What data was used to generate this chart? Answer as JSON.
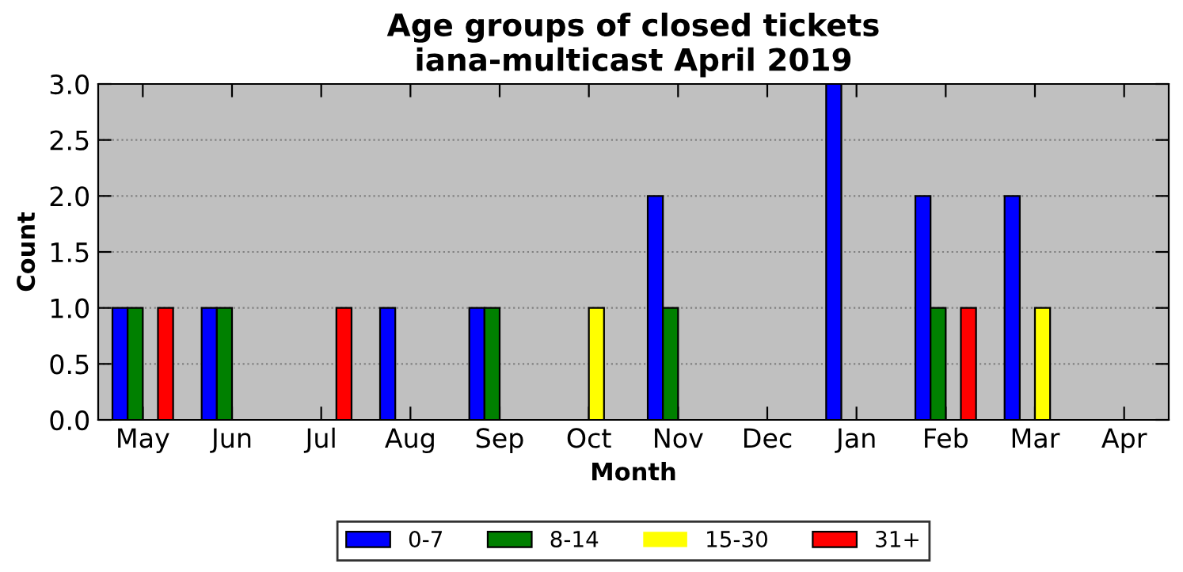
{
  "chart_data": {
    "type": "bar",
    "title": "Age groups of closed tickets\niana-multicast April 2019",
    "xlabel": "Month",
    "ylabel": "Count",
    "categories": [
      "May",
      "Jun",
      "Jul",
      "Aug",
      "Sep",
      "Oct",
      "Nov",
      "Dec",
      "Jan",
      "Feb",
      "Mar",
      "Apr"
    ],
    "series": [
      {
        "name": "0-7",
        "color": "#0000ff",
        "values": [
          1,
          1,
          0,
          1,
          1,
          0,
          2,
          0,
          3,
          2,
          2,
          0
        ]
      },
      {
        "name": "8-14",
        "color": "#008000",
        "values": [
          1,
          1,
          0,
          0,
          1,
          0,
          1,
          0,
          0,
          1,
          0,
          0
        ]
      },
      {
        "name": "15-30",
        "color": "#ffff00",
        "values": [
          0,
          0,
          0,
          0,
          0,
          1,
          0,
          0,
          0,
          0,
          1,
          0
        ]
      },
      {
        "name": "31+",
        "color": "#ff0000",
        "values": [
          1,
          0,
          1,
          0,
          0,
          0,
          0,
          0,
          0,
          1,
          0,
          0
        ]
      }
    ],
    "ylim": [
      0,
      3
    ],
    "yticks": [
      {
        "value": 0,
        "label": "0.0"
      },
      {
        "value": 0.5,
        "label": "0.5"
      },
      {
        "value": 1,
        "label": "1.0"
      },
      {
        "value": 1.5,
        "label": "1.5"
      },
      {
        "value": 2,
        "label": "2.0"
      },
      {
        "value": 2.5,
        "label": "2.5"
      },
      {
        "value": 3,
        "label": "3.0"
      }
    ],
    "grid": "y",
    "legend": "bottom"
  }
}
